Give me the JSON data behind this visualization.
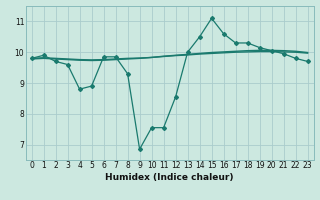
{
  "title": "",
  "xlabel": "Humidex (Indice chaleur)",
  "ylabel": "",
  "bg_color": "#cce8e0",
  "grid_color": "#aacccc",
  "line_color": "#1a7a6e",
  "xlim": [
    -0.5,
    23.5
  ],
  "ylim": [
    6.5,
    11.5
  ],
  "xticks": [
    0,
    1,
    2,
    3,
    4,
    5,
    6,
    7,
    8,
    9,
    10,
    11,
    12,
    13,
    14,
    15,
    16,
    17,
    18,
    19,
    20,
    21,
    22,
    23
  ],
  "yticks": [
    7,
    8,
    9,
    10,
    11
  ],
  "series1_x": [
    0,
    1,
    2,
    3,
    4,
    5,
    6,
    7,
    8,
    9,
    10,
    11,
    12,
    13,
    14,
    15,
    16,
    17,
    18,
    19,
    20,
    21,
    22,
    23
  ],
  "series1_y": [
    9.8,
    9.9,
    9.7,
    9.6,
    8.8,
    8.9,
    9.85,
    9.85,
    9.3,
    6.85,
    7.55,
    7.55,
    8.55,
    10.0,
    10.5,
    11.1,
    10.6,
    10.3,
    10.3,
    10.15,
    10.05,
    9.95,
    9.8,
    9.7
  ],
  "series2_x": [
    0,
    1,
    2,
    3,
    4,
    5,
    6,
    7,
    8,
    9,
    10,
    11,
    12,
    13,
    14,
    15,
    16,
    17,
    18,
    19,
    20,
    21,
    22,
    23
  ],
  "series2_y": [
    9.78,
    9.8,
    9.78,
    9.76,
    9.74,
    9.73,
    9.74,
    9.76,
    9.78,
    9.8,
    9.83,
    9.87,
    9.9,
    9.93,
    9.96,
    9.99,
    10.01,
    10.03,
    10.05,
    10.06,
    10.06,
    10.05,
    10.03,
    9.99
  ],
  "series3_x": [
    0,
    1,
    2,
    3,
    4,
    5,
    6,
    7,
    8,
    9,
    10,
    11,
    12,
    13,
    14,
    15,
    16,
    17,
    18,
    19,
    20,
    21,
    22,
    23
  ],
  "series3_y": [
    9.8,
    9.82,
    9.8,
    9.78,
    9.76,
    9.75,
    9.76,
    9.78,
    9.8,
    9.81,
    9.83,
    9.86,
    9.89,
    9.91,
    9.94,
    9.96,
    9.98,
    10.0,
    10.01,
    10.02,
    10.02,
    10.01,
    10.0,
    9.97
  ]
}
